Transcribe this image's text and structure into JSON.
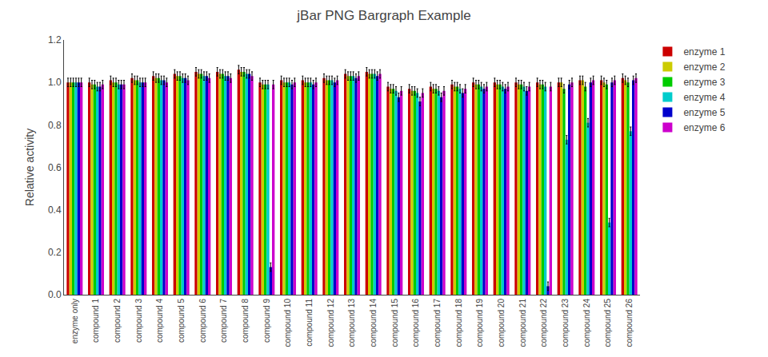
{
  "chart_data": {
    "type": "bar",
    "title": "jBar PNG Bargraph Example",
    "ylabel": "Relative activity",
    "categories": [
      "enzyme only",
      "compound 1",
      "compound 2",
      "compound 3",
      "compound 4",
      "compound 5",
      "compound 6",
      "compound 7",
      "compound 8",
      "compound 9",
      "compound 10",
      "compound 11",
      "compound 12",
      "compound 13",
      "compound 14",
      "compound 15",
      "compound 16",
      "compound 17",
      "compound 18",
      "compound 19",
      "compound 20",
      "compound 21",
      "compound 22",
      "compound 23",
      "compound 24",
      "compound 25",
      "compound 26"
    ],
    "series": [
      {
        "name": "enzyme 1",
        "color": "#cc0000",
        "values": [
          1.0,
          1.0,
          1.01,
          1.02,
          1.03,
          1.04,
          1.05,
          1.05,
          1.06,
          1.0,
          1.01,
          1.01,
          1.02,
          1.04,
          1.05,
          0.98,
          0.97,
          0.98,
          0.99,
          1.0,
          1.0,
          1.0,
          1.0,
          1.0,
          1.01,
          1.01,
          1.02
        ],
        "errors": [
          0.02,
          0.02,
          0.02,
          0.02,
          0.02,
          0.02,
          0.02,
          0.02,
          0.02,
          0.02,
          0.02,
          0.02,
          0.02,
          0.02,
          0.02,
          0.02,
          0.02,
          0.02,
          0.02,
          0.02,
          0.02,
          0.02,
          0.02,
          0.02,
          0.02,
          0.02,
          0.02
        ]
      },
      {
        "name": "enzyme 2",
        "color": "#cccc00",
        "values": [
          1.0,
          0.99,
          1.0,
          1.01,
          1.02,
          1.03,
          1.04,
          1.04,
          1.05,
          0.99,
          1.0,
          1.0,
          1.01,
          1.03,
          1.04,
          0.97,
          0.96,
          0.97,
          0.98,
          0.99,
          0.99,
          0.99,
          0.99,
          1.0,
          1.01,
          1.0,
          1.01
        ],
        "errors": [
          0.02,
          0.02,
          0.02,
          0.02,
          0.02,
          0.02,
          0.02,
          0.02,
          0.02,
          0.02,
          0.02,
          0.02,
          0.02,
          0.02,
          0.02,
          0.02,
          0.02,
          0.02,
          0.02,
          0.02,
          0.02,
          0.02,
          0.02,
          0.02,
          0.02,
          0.02,
          0.02
        ]
      },
      {
        "name": "enzyme 3",
        "color": "#00cc00",
        "values": [
          1.0,
          0.99,
          1.0,
          1.01,
          1.02,
          1.03,
          1.04,
          1.04,
          1.05,
          0.99,
          1.0,
          1.0,
          1.01,
          1.03,
          1.04,
          0.97,
          0.96,
          0.97,
          0.98,
          0.99,
          0.99,
          0.99,
          0.99,
          0.97,
          0.98,
          0.99,
          1.0
        ],
        "errors": [
          0.02,
          0.02,
          0.02,
          0.02,
          0.02,
          0.02,
          0.02,
          0.02,
          0.02,
          0.02,
          0.02,
          0.02,
          0.02,
          0.02,
          0.02,
          0.02,
          0.02,
          0.02,
          0.02,
          0.02,
          0.02,
          0.02,
          0.02,
          0.02,
          0.02,
          0.02,
          0.02
        ]
      },
      {
        "name": "enzyme 4",
        "color": "#00cccc",
        "values": [
          1.0,
          0.98,
          0.99,
          1.0,
          1.01,
          1.02,
          1.03,
          1.03,
          1.04,
          0.99,
          1.0,
          1.0,
          1.01,
          1.03,
          1.04,
          0.96,
          0.95,
          0.96,
          0.97,
          0.98,
          0.98,
          0.98,
          0.98,
          0.73,
          0.81,
          0.34,
          0.77
        ],
        "errors": [
          0.02,
          0.02,
          0.02,
          0.02,
          0.02,
          0.02,
          0.02,
          0.02,
          0.02,
          0.02,
          0.02,
          0.02,
          0.02,
          0.02,
          0.02,
          0.02,
          0.02,
          0.02,
          0.02,
          0.02,
          0.02,
          0.02,
          0.02,
          0.02,
          0.02,
          0.02,
          0.02
        ]
      },
      {
        "name": "enzyme 5",
        "color": "#0000cc",
        "values": [
          1.0,
          0.98,
          0.99,
          1.0,
          1.01,
          1.02,
          1.03,
          1.03,
          1.04,
          0.13,
          0.99,
          0.99,
          1.0,
          1.02,
          1.03,
          0.93,
          0.91,
          0.93,
          0.95,
          0.97,
          0.97,
          0.96,
          0.04,
          0.99,
          1.0,
          1.0,
          1.01
        ],
        "errors": [
          0.02,
          0.02,
          0.02,
          0.02,
          0.02,
          0.02,
          0.02,
          0.02,
          0.02,
          0.02,
          0.02,
          0.02,
          0.02,
          0.02,
          0.02,
          0.02,
          0.02,
          0.02,
          0.02,
          0.02,
          0.02,
          0.02,
          0.02,
          0.02,
          0.02,
          0.02,
          0.02
        ]
      },
      {
        "name": "enzyme 6",
        "color": "#cc00cc",
        "values": [
          1.0,
          0.99,
          0.99,
          1.0,
          1.0,
          1.01,
          1.02,
          1.02,
          1.03,
          0.99,
          1.0,
          1.0,
          1.01,
          1.03,
          1.04,
          0.96,
          0.95,
          0.96,
          0.97,
          0.98,
          0.98,
          0.98,
          0.98,
          1.0,
          1.01,
          1.01,
          1.02
        ],
        "errors": [
          0.02,
          0.02,
          0.02,
          0.02,
          0.02,
          0.02,
          0.02,
          0.02,
          0.02,
          0.02,
          0.02,
          0.02,
          0.02,
          0.02,
          0.02,
          0.02,
          0.02,
          0.02,
          0.02,
          0.02,
          0.02,
          0.02,
          0.02,
          0.02,
          0.02,
          0.02,
          0.02
        ]
      }
    ],
    "ylim": [
      0.0,
      1.2
    ],
    "yticks": [
      {
        "value": 0.0,
        "label": "0.0"
      },
      0.2,
      0.4,
      0.6,
      0.8,
      {
        "value": 1.0,
        "label": "1.0"
      },
      1.2
    ],
    "grid": false,
    "legend": "upper right"
  }
}
